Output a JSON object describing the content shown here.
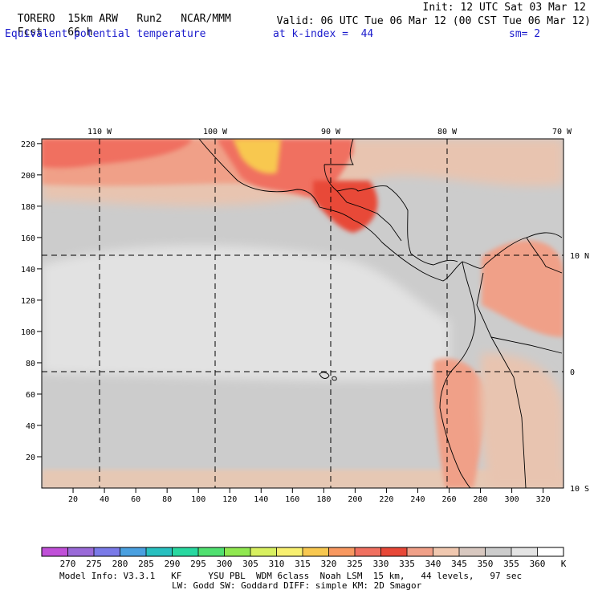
{
  "header": {
    "model": "TORERO",
    "resolution": "15km ARW",
    "run": "Run2",
    "org": "NCAR/MMM",
    "init": "Init: 12 UTC Sat 03 Mar 12",
    "fcst_label": "Fcst.",
    "fcst_value": "66 h",
    "valid": "Valid: 06 UTC Tue 06 Mar 12 (00 CST Tue 06 Mar 12)",
    "field": "Equivalent potential temperature",
    "level": "at k-index =  44",
    "smooth": "sm= 2"
  },
  "map": {
    "top_lon_labels": [
      "110 W",
      "100 W",
      "90 W",
      "80 W",
      "70 W"
    ],
    "right_lat_labels": [
      "10 N",
      "0",
      "10 S"
    ],
    "left_y_ticks": [
      "220",
      "200",
      "180",
      "160",
      "140",
      "120",
      "100",
      "80",
      "60",
      "40",
      "20"
    ],
    "bottom_x_ticks": [
      "20",
      "40",
      "60",
      "80",
      "100",
      "120",
      "140",
      "160",
      "180",
      "200",
      "220",
      "240",
      "260",
      "280",
      "300",
      "320"
    ]
  },
  "colorbar": {
    "labels": [
      "270",
      "275",
      "280",
      "285",
      "290",
      "295",
      "300",
      "305",
      "310",
      "315",
      "320",
      "325",
      "330",
      "335",
      "340",
      "345",
      "350",
      "355",
      "360"
    ],
    "unit": "K",
    "colors": [
      "#c050d8",
      "#9a6ad8",
      "#7a7ae8",
      "#4aa0e0",
      "#28c0c0",
      "#28d8a0",
      "#50e070",
      "#90e850",
      "#d8f060",
      "#f8f070",
      "#f8c850",
      "#f89860",
      "#f07060",
      "#e84838",
      "#f0a088",
      "#f0c8b0",
      "#d8c8c0",
      "#cccccc",
      "#e4e4e4",
      "#ffffff"
    ]
  },
  "footer": {
    "line1": "Model Info: V3.3.1   KF     YSU PBL  WDM 6class  Noah LSM  15 km,   44 levels,   97 sec",
    "line2": "LW: Godd SW: Goddard DIFF: simple KM: 2D Smagor"
  }
}
